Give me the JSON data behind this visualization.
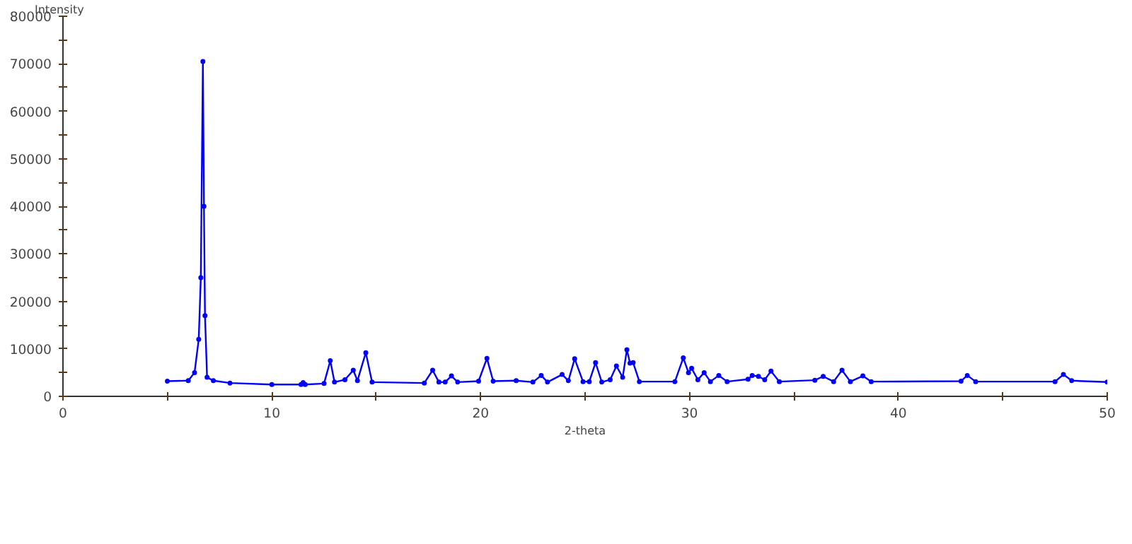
{
  "chart_data": {
    "type": "line",
    "xlabel": "2-theta",
    "ylabel": "Intensity",
    "x": [
      5,
      6,
      6.3,
      6.5,
      6.6,
      6.7,
      6.75,
      6.8,
      6.9,
      7.2,
      8,
      10,
      11.4,
      11.5,
      11.6,
      12.5,
      12.8,
      13.0,
      13.5,
      13.9,
      14.1,
      14.5,
      14.8,
      17.3,
      17.7,
      18.0,
      18.3,
      18.6,
      18.9,
      19.9,
      20.3,
      20.6,
      21.7,
      22.5,
      22.9,
      23.2,
      23.9,
      24.2,
      24.5,
      24.9,
      25.2,
      25.5,
      25.8,
      26.2,
      26.5,
      26.8,
      27.0,
      27.15,
      27.3,
      27.6,
      29.3,
      29.7,
      29.95,
      30.1,
      30.4,
      30.7,
      31.0,
      31.4,
      31.8,
      32.8,
      33.0,
      33.3,
      33.6,
      33.9,
      34.3,
      36.0,
      36.4,
      36.9,
      37.3,
      37.7,
      38.3,
      38.7,
      43.0,
      43.3,
      43.7,
      47.5,
      47.9,
      48.3,
      50
    ],
    "series": [
      {
        "color": "#0000ff",
        "values": [
          3200,
          3300,
          5000,
          12000,
          25000,
          70500,
          40000,
          17000,
          4000,
          3300,
          2800,
          2500,
          2500,
          2900,
          2500,
          2700,
          7500,
          3000,
          3500,
          5500,
          3300,
          9200,
          3000,
          2800,
          5500,
          3000,
          3000,
          4300,
          3000,
          3200,
          8000,
          3200,
          3300,
          3000,
          4400,
          3000,
          4600,
          3300,
          7900,
          3100,
          3100,
          7100,
          3000,
          3500,
          6400,
          4000,
          9800,
          7000,
          7100,
          3100,
          3100,
          8100,
          5000,
          5900,
          3500,
          5000,
          3100,
          4400,
          3100,
          3600,
          4400,
          4200,
          3500,
          5300,
          3100,
          3400,
          4200,
          3100,
          5500,
          3100,
          4300,
          3100,
          3200,
          4400,
          3100,
          3100,
          4600,
          3300,
          3000
        ]
      }
    ],
    "xlim": [
      0,
      50
    ],
    "xticks": [
      0,
      {
        "value": 5,
        "label": null
      },
      10,
      {
        "value": 15,
        "label": null
      },
      20,
      {
        "value": 25,
        "label": null
      },
      30,
      {
        "value": 35,
        "label": null
      },
      40,
      {
        "value": 45,
        "label": null
      },
      50
    ],
    "ylim": [
      0,
      80000
    ],
    "yticks": [
      0,
      {
        "value": 5000,
        "label": null
      },
      10000,
      {
        "value": 15000,
        "label": null
      },
      20000,
      {
        "value": 25000,
        "label": null
      },
      30000,
      {
        "value": 35000,
        "label": null
      },
      40000,
      {
        "value": 45000,
        "label": null
      },
      50000,
      {
        "value": 55000,
        "label": null
      },
      60000,
      {
        "value": 65000,
        "label": null
      },
      70000,
      {
        "value": 75000,
        "label": null
      },
      80000
    ],
    "grid": false,
    "marker": "circle",
    "line_style": "solid"
  }
}
